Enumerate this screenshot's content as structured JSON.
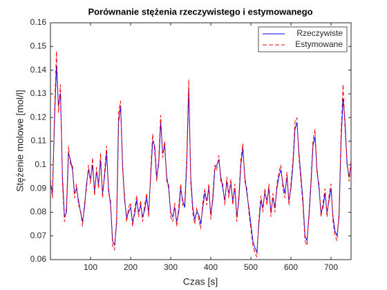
{
  "chart_data": {
    "type": "line",
    "title": "Porównanie stężenia rzeczywistego i estymowanego",
    "x_label": "Czas [s]",
    "y_label": "Stężenie molowe [mol/l]",
    "x": [
      0,
      5,
      10,
      15,
      20,
      25,
      30,
      35,
      40,
      45,
      50,
      55,
      60,
      65,
      70,
      75,
      80,
      85,
      90,
      95,
      100,
      105,
      110,
      115,
      120,
      125,
      130,
      135,
      140,
      145,
      150,
      155,
      160,
      165,
      170,
      175,
      180,
      185,
      190,
      195,
      200,
      205,
      210,
      215,
      220,
      225,
      230,
      235,
      240,
      245,
      250,
      255,
      260,
      265,
      270,
      275,
      280,
      285,
      290,
      295,
      300,
      305,
      310,
      315,
      320,
      325,
      330,
      335,
      340,
      345,
      350,
      355,
      360,
      365,
      370,
      375,
      380,
      385,
      390,
      395,
      400,
      405,
      410,
      415,
      420,
      425,
      430,
      435,
      440,
      445,
      450,
      455,
      460,
      465,
      470,
      475,
      480,
      485,
      490,
      495,
      500,
      505,
      510,
      515,
      520,
      525,
      530,
      535,
      540,
      545,
      550,
      555,
      560,
      565,
      570,
      575,
      580,
      585,
      590,
      595,
      600,
      605,
      610,
      615,
      620,
      625,
      630,
      635,
      640,
      645,
      650,
      655,
      660,
      665,
      670,
      675,
      680,
      685,
      690,
      695,
      700,
      705,
      710,
      715,
      720,
      725,
      730,
      735,
      740,
      745,
      750
    ],
    "series": [
      {
        "name": "Rzeczywiste",
        "color": "#0000ff",
        "dash": "solid",
        "values": [
          0.092,
          0.088,
          0.118,
          0.142,
          0.125,
          0.13,
          0.095,
          0.078,
          0.08,
          0.105,
          0.102,
          0.098,
          0.088,
          0.09,
          0.085,
          0.08,
          0.076,
          0.082,
          0.092,
          0.098,
          0.094,
          0.1,
          0.089,
          0.097,
          0.092,
          0.102,
          0.088,
          0.095,
          0.105,
          0.09,
          0.083,
          0.068,
          0.066,
          0.075,
          0.118,
          0.125,
          0.1,
          0.085,
          0.078,
          0.08,
          0.082,
          0.076,
          0.079,
          0.085,
          0.08,
          0.083,
          0.078,
          0.081,
          0.086,
          0.08,
          0.095,
          0.11,
          0.108,
          0.095,
          0.1,
          0.118,
          0.105,
          0.108,
          0.095,
          0.09,
          0.08,
          0.078,
          0.082,
          0.076,
          0.08,
          0.09,
          0.085,
          0.082,
          0.1,
          0.132,
          0.095,
          0.082,
          0.077,
          0.08,
          0.079,
          0.075,
          0.082,
          0.088,
          0.085,
          0.09,
          0.079,
          0.085,
          0.098,
          0.1,
          0.102,
          0.095,
          0.09,
          0.085,
          0.093,
          0.088,
          0.092,
          0.085,
          0.09,
          0.078,
          0.085,
          0.1,
          0.107,
          0.095,
          0.088,
          0.082,
          0.075,
          0.068,
          0.065,
          0.063,
          0.075,
          0.085,
          0.082,
          0.088,
          0.085,
          0.09,
          0.08,
          0.086,
          0.082,
          0.09,
          0.095,
          0.098,
          0.092,
          0.088,
          0.095,
          0.085,
          0.09,
          0.1,
          0.115,
          0.118,
          0.105,
          0.095,
          0.085,
          0.07,
          0.068,
          0.078,
          0.092,
          0.108,
          0.112,
          0.098,
          0.09,
          0.08,
          0.082,
          0.088,
          0.08,
          0.085,
          0.09,
          0.078,
          0.072,
          0.07,
          0.078,
          0.11,
          0.128,
          0.118,
          0.1,
          0.095,
          0.1
        ]
      },
      {
        "name": "Estymowane",
        "color": "#ff0000",
        "dash": "dashed",
        "values": [
          0.094,
          0.086,
          0.121,
          0.148,
          0.122,
          0.134,
          0.092,
          0.076,
          0.082,
          0.108,
          0.1,
          0.1,
          0.086,
          0.092,
          0.083,
          0.081,
          0.074,
          0.084,
          0.09,
          0.1,
          0.092,
          0.103,
          0.087,
          0.099,
          0.09,
          0.105,
          0.086,
          0.097,
          0.108,
          0.088,
          0.085,
          0.066,
          0.064,
          0.077,
          0.122,
          0.127,
          0.098,
          0.087,
          0.076,
          0.082,
          0.084,
          0.074,
          0.081,
          0.087,
          0.078,
          0.085,
          0.076,
          0.083,
          0.088,
          0.078,
          0.097,
          0.113,
          0.106,
          0.093,
          0.102,
          0.121,
          0.103,
          0.11,
          0.093,
          0.092,
          0.078,
          0.076,
          0.084,
          0.074,
          0.082,
          0.092,
          0.083,
          0.084,
          0.103,
          0.136,
          0.093,
          0.08,
          0.075,
          0.082,
          0.077,
          0.073,
          0.084,
          0.09,
          0.083,
          0.092,
          0.077,
          0.087,
          0.1,
          0.098,
          0.104,
          0.093,
          0.092,
          0.083,
          0.095,
          0.086,
          0.094,
          0.083,
          0.092,
          0.076,
          0.087,
          0.102,
          0.109,
          0.093,
          0.09,
          0.08,
          0.073,
          0.066,
          0.063,
          0.061,
          0.077,
          0.087,
          0.08,
          0.09,
          0.083,
          0.092,
          0.078,
          0.088,
          0.08,
          0.092,
          0.097,
          0.1,
          0.09,
          0.086,
          0.097,
          0.083,
          0.092,
          0.102,
          0.118,
          0.12,
          0.103,
          0.093,
          0.083,
          0.068,
          0.066,
          0.08,
          0.094,
          0.11,
          0.115,
          0.096,
          0.092,
          0.078,
          0.084,
          0.09,
          0.078,
          0.087,
          0.092,
          0.076,
          0.07,
          0.068,
          0.08,
          0.113,
          0.134,
          0.115,
          0.102,
          0.093,
          0.102
        ]
      }
    ],
    "xlim": [
      0,
      750
    ],
    "ylim": [
      0.06,
      0.16
    ],
    "xticks": [
      100,
      200,
      300,
      400,
      500,
      600,
      700
    ],
    "yticks": [
      0.06,
      0.07,
      0.08,
      0.09,
      0.1,
      0.11,
      0.12,
      0.13,
      0.14,
      0.15,
      0.16
    ],
    "legend": "northeast"
  }
}
